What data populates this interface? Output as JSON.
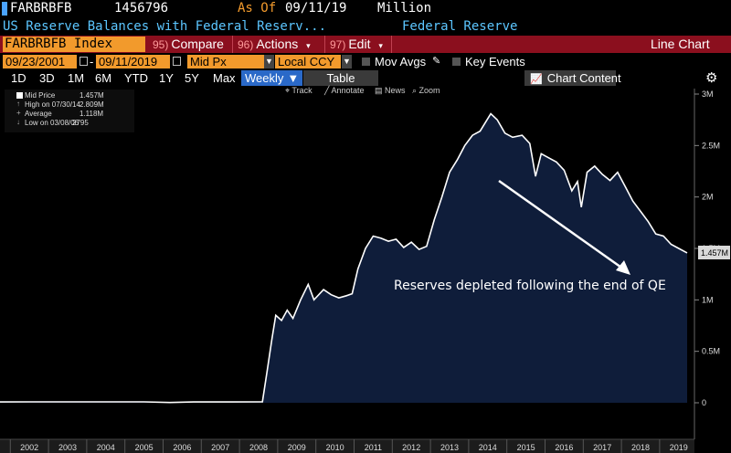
{
  "header": {
    "ticker_code": "FARBRBFB",
    "last_value": "1456796",
    "as_of_label": "As Of",
    "as_of_date": "09/11/19",
    "units": "Million",
    "description": "US Reserve Balances with Federal Reserv...",
    "source": "Federal Reserve"
  },
  "function_bar": {
    "security": "FARBRBFB Index",
    "compare_num": "95)",
    "compare_label": "Compare",
    "actions_num": "96)",
    "actions_label": "Actions",
    "edit_num": "97)",
    "edit_label": "Edit",
    "view_label": "Line Chart"
  },
  "controls": {
    "start_date": "09/23/2001",
    "end_date": "09/11/2019",
    "field": "Mid Px",
    "currency": "Local CCY",
    "mov_avgs": "Mov Avgs",
    "key_events": "Key Events"
  },
  "periods": [
    "1D",
    "3D",
    "1M",
    "6M",
    "YTD",
    "1Y",
    "5Y",
    "Max"
  ],
  "frequency": "Weekly",
  "table_label": "Table",
  "chart_content_label": "Chart Content",
  "tools": {
    "track": "Track",
    "annotate": "Annotate",
    "news": "News",
    "zoom": "Zoom"
  },
  "legend": [
    {
      "label": "Mid Price",
      "value": "1.457M"
    },
    {
      "label": "High on 07/30/14",
      "value": "2.809M"
    },
    {
      "label": "Average",
      "value": "1.118M"
    },
    {
      "label": "Low on 03/08/06",
      "value": "2795"
    }
  ],
  "annotation": "Reserves depleted following the end of QE",
  "last_value_label": "1.457M",
  "colors": {
    "accent": "#f29a2c",
    "bar": "#8b0f1e",
    "header_blue": "#5cc6ff",
    "area": "#0f1d3a"
  },
  "icons": [
    "gear-icon",
    "calendar-icon",
    "dropdown-arrow-icon",
    "pencil-icon",
    "chart-icon"
  ],
  "chart_data": {
    "type": "area",
    "x_ticks": [
      "2002",
      "2003",
      "2004",
      "2005",
      "2006",
      "2007",
      "2008",
      "2009",
      "2010",
      "2011",
      "2012",
      "2013",
      "2014",
      "2015",
      "2016",
      "2017",
      "2018",
      "2019"
    ],
    "y_ticks": [
      "0",
      "0.5M",
      "1M",
      "1.5M",
      "2M",
      "2.5M",
      "3M"
    ],
    "ylim": [
      0,
      3000000
    ],
    "xlim": [
      2001.73,
      2019.72
    ],
    "series": [
      {
        "points": [
          [
            2001.73,
            8000
          ],
          [
            2002.5,
            9000
          ],
          [
            2003.5,
            9000
          ],
          [
            2004.5,
            9000
          ],
          [
            2005.5,
            9000
          ],
          [
            2006.18,
            2795
          ],
          [
            2006.8,
            8000
          ],
          [
            2007.5,
            8000
          ],
          [
            2008.6,
            10000
          ],
          [
            2008.72,
            300000
          ],
          [
            2008.85,
            620000
          ],
          [
            2008.95,
            850000
          ],
          [
            2009.1,
            800000
          ],
          [
            2009.25,
            900000
          ],
          [
            2009.4,
            820000
          ],
          [
            2009.6,
            1000000
          ],
          [
            2009.8,
            1150000
          ],
          [
            2009.95,
            1000000
          ],
          [
            2010.2,
            1100000
          ],
          [
            2010.4,
            1050000
          ],
          [
            2010.6,
            1020000
          ],
          [
            2010.8,
            1040000
          ],
          [
            2010.95,
            1060000
          ],
          [
            2011.1,
            1300000
          ],
          [
            2011.3,
            1500000
          ],
          [
            2011.5,
            1620000
          ],
          [
            2011.7,
            1600000
          ],
          [
            2011.9,
            1570000
          ],
          [
            2012.1,
            1590000
          ],
          [
            2012.3,
            1510000
          ],
          [
            2012.5,
            1560000
          ],
          [
            2012.7,
            1490000
          ],
          [
            2012.9,
            1520000
          ],
          [
            2013.1,
            1780000
          ],
          [
            2013.3,
            2000000
          ],
          [
            2013.5,
            2240000
          ],
          [
            2013.7,
            2360000
          ],
          [
            2013.9,
            2500000
          ],
          [
            2014.1,
            2600000
          ],
          [
            2014.3,
            2640000
          ],
          [
            2014.58,
            2809000
          ],
          [
            2014.75,
            2750000
          ],
          [
            2014.95,
            2620000
          ],
          [
            2015.15,
            2580000
          ],
          [
            2015.4,
            2600000
          ],
          [
            2015.6,
            2520000
          ],
          [
            2015.75,
            2200000
          ],
          [
            2015.9,
            2420000
          ],
          [
            2016.1,
            2380000
          ],
          [
            2016.3,
            2340000
          ],
          [
            2016.5,
            2260000
          ],
          [
            2016.7,
            2060000
          ],
          [
            2016.85,
            2150000
          ],
          [
            2016.95,
            1900000
          ],
          [
            2017.1,
            2240000
          ],
          [
            2017.3,
            2300000
          ],
          [
            2017.5,
            2220000
          ],
          [
            2017.7,
            2160000
          ],
          [
            2017.9,
            2240000
          ],
          [
            2018.1,
            2100000
          ],
          [
            2018.3,
            1960000
          ],
          [
            2018.5,
            1860000
          ],
          [
            2018.7,
            1760000
          ],
          [
            2018.9,
            1640000
          ],
          [
            2019.1,
            1620000
          ],
          [
            2019.3,
            1540000
          ],
          [
            2019.5,
            1500000
          ],
          [
            2019.72,
            1456796
          ]
        ]
      }
    ],
    "grid": false,
    "legend_position": "top-left"
  }
}
